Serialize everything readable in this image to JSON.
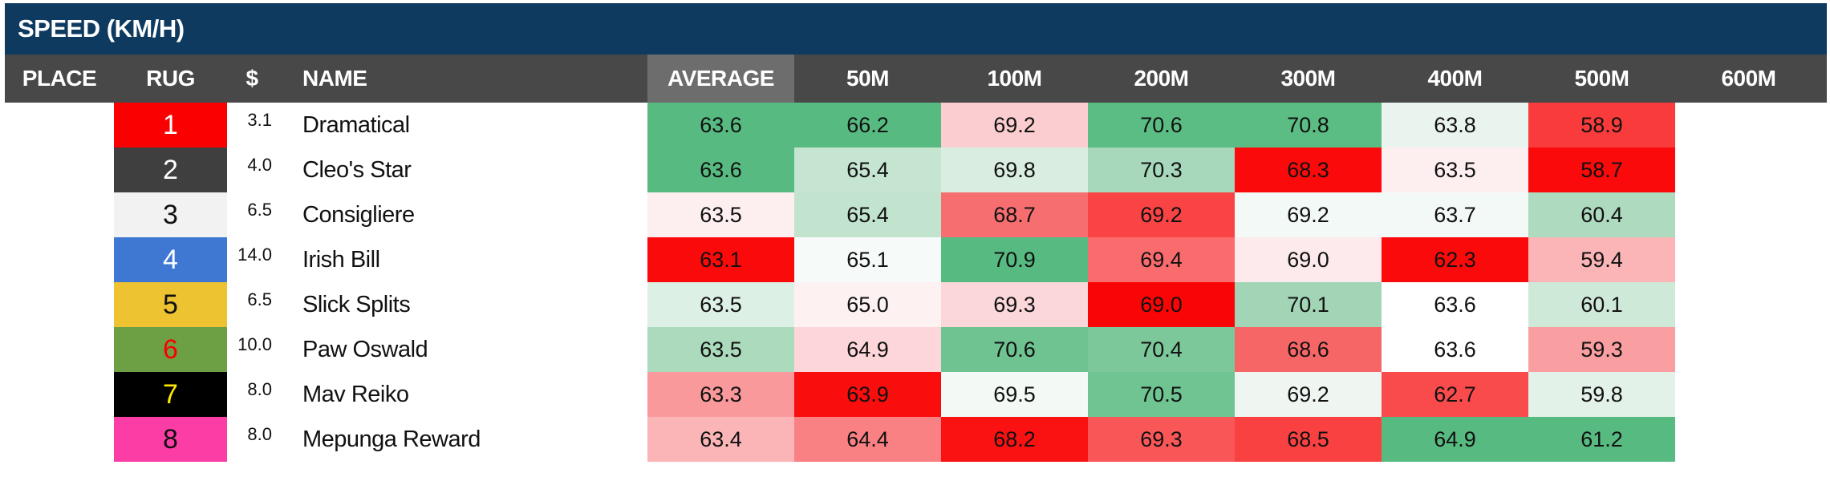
{
  "title": "SPEED (KM/H)",
  "columns": {
    "place": "PLACE",
    "rug": "RUG",
    "dollar": "$",
    "name": "NAME",
    "speed": [
      "AVERAGE",
      "50M",
      "100M",
      "200M",
      "300M",
      "400M",
      "500M",
      "600M"
    ]
  },
  "colors": {
    "title_bar": "#0e3a60",
    "header_bar": "#484848",
    "average_highlight": "#6d6d6d",
    "heat_green_strong": "#57bb81",
    "heat_red_strong": "#fa0a0a"
  },
  "rows": [
    {
      "rug": "1",
      "rug_bg": "#fb0000",
      "rug_fg": "#ffffff",
      "price": "3.1",
      "name": "Dramatical",
      "speeds": [
        {
          "v": "63.6",
          "bg": "#57bb81"
        },
        {
          "v": "66.2",
          "bg": "#57bb81"
        },
        {
          "v": "69.2",
          "bg": "#fbcdd0"
        },
        {
          "v": "70.6",
          "bg": "#5cbd84"
        },
        {
          "v": "70.8",
          "bg": "#5cbd84"
        },
        {
          "v": "63.8",
          "bg": "#e9f4ee"
        },
        {
          "v": "58.9",
          "bg": "#f93b3b"
        },
        {
          "v": "",
          "bg": ""
        }
      ]
    },
    {
      "rug": "2",
      "rug_bg": "#3f3f3f",
      "rug_fg": "#ffffff",
      "price": "4.0",
      "name": "Cleo's Star",
      "speeds": [
        {
          "v": "63.6",
          "bg": "#57bb81"
        },
        {
          "v": "65.4",
          "bg": "#c5e5d1"
        },
        {
          "v": "69.8",
          "bg": "#d9eee1"
        },
        {
          "v": "70.3",
          "bg": "#a7d8bb"
        },
        {
          "v": "68.3",
          "bg": "#fa0a0a"
        },
        {
          "v": "63.5",
          "bg": "#fdeff0"
        },
        {
          "v": "58.7",
          "bg": "#fa0a0a"
        },
        {
          "v": "",
          "bg": ""
        }
      ]
    },
    {
      "rug": "3",
      "rug_bg": "#f2f2f2",
      "rug_fg": "#111111",
      "price": "6.5",
      "name": "Consigliere",
      "speeds": [
        {
          "v": "63.5",
          "bg": "#fdeff0"
        },
        {
          "v": "65.4",
          "bg": "#c2e3ce"
        },
        {
          "v": "68.7",
          "bg": "#f66e70"
        },
        {
          "v": "69.2",
          "bg": "#f94344"
        },
        {
          "v": "69.2",
          "bg": "#f3f9f6"
        },
        {
          "v": "63.7",
          "bg": "#f3f9f6"
        },
        {
          "v": "60.4",
          "bg": "#aedabf"
        },
        {
          "v": "",
          "bg": ""
        }
      ]
    },
    {
      "rug": "4",
      "rug_bg": "#3e78d2",
      "rug_fg": "#ffffff",
      "price": "14.0",
      "name": "Irish Bill",
      "speeds": [
        {
          "v": "63.1",
          "bg": "#fa0a0a"
        },
        {
          "v": "65.1",
          "bg": "#f6faf8"
        },
        {
          "v": "70.9",
          "bg": "#57bb81"
        },
        {
          "v": "69.4",
          "bg": "#f96b6d"
        },
        {
          "v": "69.0",
          "bg": "#fdeaec"
        },
        {
          "v": "62.3",
          "bg": "#fa0a0a"
        },
        {
          "v": "59.4",
          "bg": "#fbb5b7"
        },
        {
          "v": "",
          "bg": ""
        }
      ]
    },
    {
      "rug": "5",
      "rug_bg": "#eec331",
      "rug_fg": "#111111",
      "price": "6.5",
      "name": "Slick Splits",
      "speeds": [
        {
          "v": "63.5",
          "bg": "#ddf0e5"
        },
        {
          "v": "65.0",
          "bg": "#fdf1f2"
        },
        {
          "v": "69.3",
          "bg": "#fcd7d9"
        },
        {
          "v": "69.0",
          "bg": "#fa0505"
        },
        {
          "v": "70.1",
          "bg": "#a2d5b6"
        },
        {
          "v": "63.6",
          "bg": "#ffffff"
        },
        {
          "v": "60.1",
          "bg": "#cfe9d9"
        },
        {
          "v": "",
          "bg": ""
        }
      ]
    },
    {
      "rug": "6",
      "rug_bg": "#6da045",
      "rug_fg": "#fb0000",
      "price": "10.0",
      "name": "Paw Oswald",
      "speeds": [
        {
          "v": "63.5",
          "bg": "#abdabd"
        },
        {
          "v": "64.9",
          "bg": "#fcd6d8"
        },
        {
          "v": "70.6",
          "bg": "#6fc391"
        },
        {
          "v": "70.4",
          "bg": "#7cc89a"
        },
        {
          "v": "68.6",
          "bg": "#f76667"
        },
        {
          "v": "63.6",
          "bg": "#ffffff"
        },
        {
          "v": "59.3",
          "bg": "#f99fa1"
        },
        {
          "v": "",
          "bg": ""
        }
      ]
    },
    {
      "rug": "7",
      "rug_bg": "#000000",
      "rug_fg": "#ffe900",
      "price": "8.0",
      "name": "Mav Reiko",
      "speeds": [
        {
          "v": "63.3",
          "bg": "#f9999b"
        },
        {
          "v": "63.9",
          "bg": "#fa0d0d"
        },
        {
          "v": "69.5",
          "bg": "#f3f9f5"
        },
        {
          "v": "70.5",
          "bg": "#70c492"
        },
        {
          "v": "69.2",
          "bg": "#eff6f2"
        },
        {
          "v": "62.7",
          "bg": "#f94b4c"
        },
        {
          "v": "59.8",
          "bg": "#e3f2e9"
        },
        {
          "v": "",
          "bg": ""
        }
      ]
    },
    {
      "rug": "8",
      "rug_bg": "#fb3da5",
      "rug_fg": "#111111",
      "price": "8.0",
      "name": "Mepunga Reward",
      "speeds": [
        {
          "v": "63.4",
          "bg": "#fbb5b7"
        },
        {
          "v": "64.4",
          "bg": "#f98183"
        },
        {
          "v": "68.2",
          "bg": "#fa1212"
        },
        {
          "v": "69.3",
          "bg": "#f95658"
        },
        {
          "v": "68.5",
          "bg": "#f94142"
        },
        {
          "v": "64.9",
          "bg": "#57bb81"
        },
        {
          "v": "61.2",
          "bg": "#57bb81"
        },
        {
          "v": "",
          "bg": ""
        }
      ]
    }
  ]
}
